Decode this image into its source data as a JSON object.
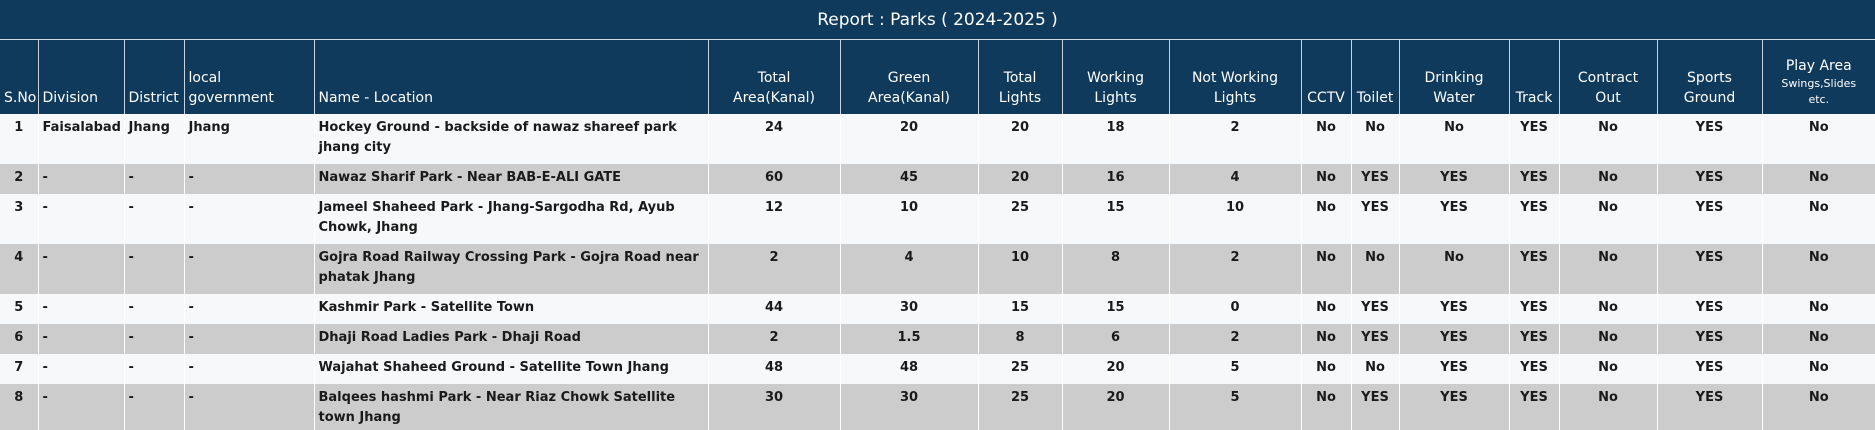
{
  "report": {
    "title": "Report : Parks ( 2024-2025 )"
  },
  "columns": {
    "sno": "S.No",
    "division": "Division",
    "district": "District",
    "local_government": "local\ngovernment",
    "name_location": "Name - Location",
    "total_area": "Total\nArea(Kanal)",
    "green_area": "Green\nArea(Kanal)",
    "total_lights": "Total\nLights",
    "working_lights": "Working\nLights",
    "not_working_lights": "Not Working\nLights",
    "cctv": "CCTV",
    "toilet": "Toilet",
    "drinking_water": "Drinking\nWater",
    "track": "Track",
    "contract_out": "Contract\nOut",
    "sports_ground": "Sports\nGround",
    "play_area": "Play Area",
    "play_area_sub": "Swings,Slides\netc."
  },
  "rows": [
    {
      "sno": "1",
      "division": "Faisalabad",
      "district": "Jhang",
      "local_government": "Jhang",
      "name": "Hockey Ground - backside of nawaz shareef park jhang city",
      "total_area": "24",
      "green_area": "20",
      "total_lights": "20",
      "working_lights": "18",
      "not_working_lights": "2",
      "cctv": "No",
      "toilet": "No",
      "drinking_water": "No",
      "track": "YES",
      "contract_out": "No",
      "sports_ground": "YES",
      "play_area": "No"
    },
    {
      "sno": "2",
      "division": "-",
      "district": "-",
      "local_government": "-",
      "name": "Nawaz Sharif Park - Near BAB-E-ALI GATE",
      "total_area": "60",
      "green_area": "45",
      "total_lights": "20",
      "working_lights": "16",
      "not_working_lights": "4",
      "cctv": "No",
      "toilet": "YES",
      "drinking_water": "YES",
      "track": "YES",
      "contract_out": "No",
      "sports_ground": "YES",
      "play_area": "No"
    },
    {
      "sno": "3",
      "division": "-",
      "district": "-",
      "local_government": "-",
      "name": "Jameel Shaheed Park - Jhang-Sargodha Rd, Ayub Chowk, Jhang",
      "total_area": "12",
      "green_area": "10",
      "total_lights": "25",
      "working_lights": "15",
      "not_working_lights": "10",
      "cctv": "No",
      "toilet": "YES",
      "drinking_water": "YES",
      "track": "YES",
      "contract_out": "No",
      "sports_ground": "YES",
      "play_area": "No"
    },
    {
      "sno": "4",
      "division": "-",
      "district": "-",
      "local_government": "-",
      "name": "Gojra Road Railway Crossing Park - Gojra Road near phatak Jhang",
      "total_area": "2",
      "green_area": "4",
      "total_lights": "10",
      "working_lights": "8",
      "not_working_lights": "2",
      "cctv": "No",
      "toilet": "No",
      "drinking_water": "No",
      "track": "YES",
      "contract_out": "No",
      "sports_ground": "YES",
      "play_area": "No"
    },
    {
      "sno": "5",
      "division": "-",
      "district": "-",
      "local_government": "-",
      "name": "Kashmir Park - Satellite Town",
      "total_area": "44",
      "green_area": "30",
      "total_lights": "15",
      "working_lights": "15",
      "not_working_lights": "0",
      "cctv": "No",
      "toilet": "YES",
      "drinking_water": "YES",
      "track": "YES",
      "contract_out": "No",
      "sports_ground": "YES",
      "play_area": "No"
    },
    {
      "sno": "6",
      "division": "-",
      "district": "-",
      "local_government": "-",
      "name": "Dhaji Road Ladies Park - Dhaji Road",
      "total_area": "2",
      "green_area": "1.5",
      "total_lights": "8",
      "working_lights": "6",
      "not_working_lights": "2",
      "cctv": "No",
      "toilet": "YES",
      "drinking_water": "YES",
      "track": "YES",
      "contract_out": "No",
      "sports_ground": "YES",
      "play_area": "No"
    },
    {
      "sno": "7",
      "division": "-",
      "district": "-",
      "local_government": "-",
      "name": "Wajahat Shaheed Ground - Satellite Town Jhang",
      "total_area": "48",
      "green_area": "48",
      "total_lights": "25",
      "working_lights": "20",
      "not_working_lights": "5",
      "cctv": "No",
      "toilet": "No",
      "drinking_water": "YES",
      "track": "YES",
      "contract_out": "No",
      "sports_ground": "YES",
      "play_area": "No"
    },
    {
      "sno": "8",
      "division": "-",
      "district": "-",
      "local_government": "-",
      "name": "Balqees hashmi Park - Near Riaz Chowk Satellite town Jhang",
      "total_area": "30",
      "green_area": "30",
      "total_lights": "25",
      "working_lights": "20",
      "not_working_lights": "5",
      "cctv": "No",
      "toilet": "YES",
      "drinking_water": "YES",
      "track": "YES",
      "contract_out": "No",
      "sports_ground": "YES",
      "play_area": "No"
    }
  ]
}
